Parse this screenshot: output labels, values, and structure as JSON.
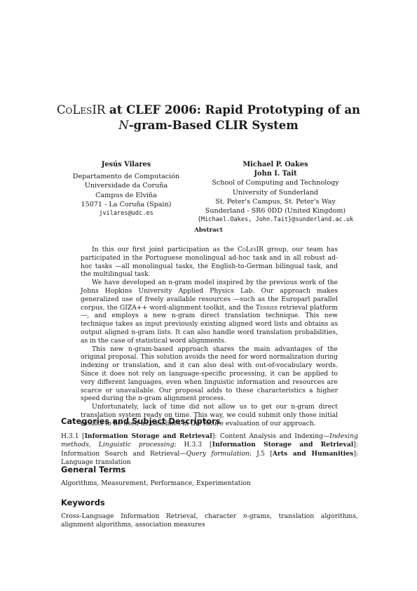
{
  "title": {
    "sc": "CoLesIR",
    "rest1": " at CLEF 2006: Rapid Prototyping of an",
    "italic_n": "N",
    "rest2": "-gram-Based CLIR System"
  },
  "authors": {
    "left": {
      "name": "Jesús Vilares",
      "lines": [
        "Departamento de Computación",
        "Universidade da Coruña",
        "Campus de Elviña",
        "15071 - La Coruña (Spain)"
      ],
      "email": "jvilares@udc.es"
    },
    "right": {
      "names": [
        "Michael P. Oakes",
        "John I. Tait"
      ],
      "lines": [
        "School of Computing and Technology",
        "University of Sunderland",
        "St. Peter's Campus, St. Peter's Way",
        "Sunderland - SR6 0DD (United Kingdom)"
      ],
      "email": "{Michael.Oakes, John.Tait}@sunderland.ac.uk"
    }
  },
  "abstract": {
    "heading": "Abstract",
    "p1": {
      "a": "In this our first joint participation as the ",
      "sc": "CoLesIR",
      "b": " group, our team has participated in the Portuguese monolingual ad-hoc task and in all robust ad-hoc tasks —all monolingual tasks, the English-to-German bilingual task, and the multilingual task."
    },
    "p2": {
      "a": "We have developed an n-gram model inspired by the previous work of the Johns Hopkins University Applied Physics Lab. Our approach makes generalized use of freely available resources —such as the Europarl parallel corpus, the GIZA++ word-alignment toolkit, and the ",
      "sc": "Terrier",
      "b": " retrieval platform—, and employs a new n-gram direct translation technique. This new technique takes as input previously existing aligned word lists and obtains as output aligned n-gram lists. It can also handle word translation probabilities, as in the case of statistical word alignments."
    },
    "p3": "This new n-gram-based approach shares the main advantages of the original proposal. This solution avoids the need for word normalization during indexing or translation, and it can also deal with out-of-vocabulary words. Since it does not rely on language-specific processing, it can be applied to very different languages, even when linguistic information and resources are scarce or unavailable. Our proposal adds to these characteristics a higher speed during the n-gram alignment process.",
    "p4": "Unfortunately, lack of time did not allow us to get our n-gram direct translation system ready on time. This way, we could submit only those initial results to be used as baselines in the future evaluation of our approach."
  },
  "categories": {
    "heading": "Categories and Subject Descriptors",
    "t1": "H.3.1 [",
    "b1": "Information Storage and Retrieval",
    "t2": "]: Content Analysis and Indexing—",
    "i1": "Indexing methods, Linguistic processing",
    "t3": "; H.3.3 [",
    "b2": "Information Storage and Retrieval",
    "t4": "]: Information Search and Retrieval—",
    "i2": "Query formulation",
    "t5": "; J.5 [",
    "b3": "Arts and Humanities",
    "t6": "]: Language translation"
  },
  "general_terms": {
    "heading": "General Terms",
    "text": "Algorithms, Measurement, Performance, Experimentation"
  },
  "keywords": {
    "heading": "Keywords",
    "a": "Cross-Language Information Retrieval, character ",
    "i": "n",
    "b": "-grams, translation algorithms, alignment algorithms, association measures"
  }
}
